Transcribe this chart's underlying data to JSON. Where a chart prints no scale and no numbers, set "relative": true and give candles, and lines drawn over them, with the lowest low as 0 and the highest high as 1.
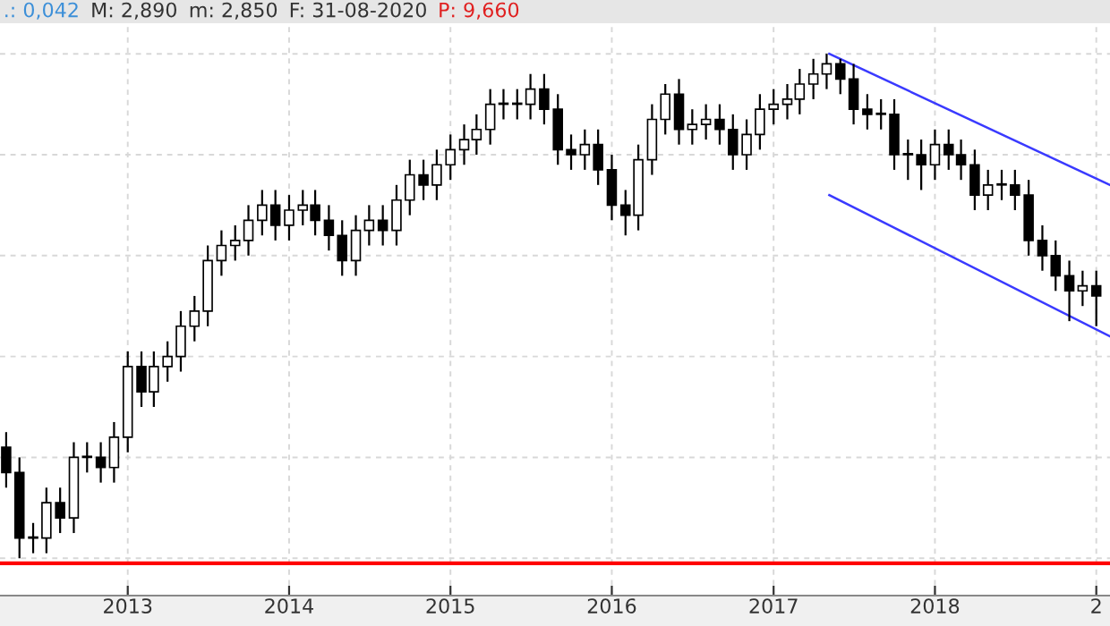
{
  "chart_data": {
    "type": "candlestick",
    "relative": true,
    "color": "#000000",
    "annotations": [
      ".: 0,042",
      "M: 2,890",
      "m: 2,850",
      "F: 31-08-2020",
      "P: 9,660"
    ],
    "x": [
      "2012-04",
      "2012-05",
      "2012-06",
      "2012-07",
      "2012-08",
      "2012-09",
      "2012-10",
      "2012-11",
      "2012-12",
      "2013-01",
      "2013-02",
      "2013-03",
      "2013-04",
      "2013-05",
      "2013-06",
      "2013-07",
      "2013-08",
      "2013-09",
      "2013-10",
      "2013-11",
      "2013-12",
      "2014-01",
      "2014-02",
      "2014-03",
      "2014-04",
      "2014-05",
      "2014-06",
      "2014-07",
      "2014-08",
      "2014-09",
      "2014-10",
      "2014-11",
      "2014-12",
      "2015-01",
      "2015-02",
      "2015-03",
      "2015-04",
      "2015-05",
      "2015-06",
      "2015-07",
      "2015-08",
      "2015-09",
      "2015-10",
      "2015-11",
      "2015-12",
      "2016-01",
      "2016-02",
      "2016-03",
      "2016-04",
      "2016-05",
      "2016-06",
      "2016-07",
      "2016-08",
      "2016-09",
      "2016-10",
      "2016-11",
      "2016-12",
      "2017-01",
      "2017-02",
      "2017-03",
      "2017-04",
      "2017-05",
      "2017-06",
      "2017-07",
      "2017-08",
      "2017-09",
      "2017-10",
      "2017-11",
      "2017-12",
      "2018-01",
      "2018-02",
      "2018-03",
      "2018-04",
      "2018-05",
      "2018-06",
      "2018-07",
      "2018-08",
      "2018-09",
      "2018-10",
      "2018-11",
      "2018-12",
      "2019-01"
    ],
    "ohlc": [
      [
        0.22,
        0.25,
        0.14,
        0.17
      ],
      [
        0.17,
        0.2,
        0,
        0.04
      ],
      [
        0.04,
        0.07,
        0.01,
        0.04
      ],
      [
        0.04,
        0.14,
        0.01,
        0.11
      ],
      [
        0.11,
        0.14,
        0.05,
        0.08
      ],
      [
        0.08,
        0.23,
        0.05,
        0.2
      ],
      [
        0.2,
        0.23,
        0.17,
        0.2
      ],
      [
        0.2,
        0.23,
        0.15,
        0.18
      ],
      [
        0.18,
        0.27,
        0.15,
        0.24
      ],
      [
        0.24,
        0.41,
        0.21,
        0.38
      ],
      [
        0.38,
        0.41,
        0.3,
        0.33
      ],
      [
        0.33,
        0.41,
        0.3,
        0.38
      ],
      [
        0.38,
        0.43,
        0.35,
        0.4
      ],
      [
        0.4,
        0.49,
        0.37,
        0.46
      ],
      [
        0.46,
        0.52,
        0.43,
        0.49
      ],
      [
        0.49,
        0.62,
        0.46,
        0.59
      ],
      [
        0.59,
        0.65,
        0.56,
        0.62
      ],
      [
        0.62,
        0.66,
        0.59,
        0.63
      ],
      [
        0.63,
        0.7,
        0.6,
        0.67
      ],
      [
        0.67,
        0.73,
        0.64,
        0.7
      ],
      [
        0.7,
        0.73,
        0.63,
        0.66
      ],
      [
        0.66,
        0.72,
        0.63,
        0.69
      ],
      [
        0.69,
        0.73,
        0.66,
        0.7
      ],
      [
        0.7,
        0.73,
        0.64,
        0.67
      ],
      [
        0.67,
        0.7,
        0.61,
        0.64
      ],
      [
        0.64,
        0.67,
        0.56,
        0.59
      ],
      [
        0.59,
        0.68,
        0.56,
        0.65
      ],
      [
        0.65,
        0.7,
        0.62,
        0.67
      ],
      [
        0.67,
        0.7,
        0.62,
        0.65
      ],
      [
        0.65,
        0.74,
        0.62,
        0.71
      ],
      [
        0.71,
        0.79,
        0.68,
        0.76
      ],
      [
        0.76,
        0.79,
        0.71,
        0.74
      ],
      [
        0.74,
        0.81,
        0.71,
        0.78
      ],
      [
        0.78,
        0.84,
        0.75,
        0.81
      ],
      [
        0.81,
        0.86,
        0.78,
        0.83
      ],
      [
        0.83,
        0.88,
        0.8,
        0.85
      ],
      [
        0.85,
        0.93,
        0.82,
        0.9
      ],
      [
        0.9,
        0.93,
        0.87,
        0.9
      ],
      [
        0.9,
        0.93,
        0.87,
        0.9
      ],
      [
        0.9,
        0.96,
        0.87,
        0.93
      ],
      [
        0.93,
        0.96,
        0.86,
        0.89
      ],
      [
        0.89,
        0.92,
        0.78,
        0.81
      ],
      [
        0.81,
        0.84,
        0.77,
        0.8
      ],
      [
        0.8,
        0.85,
        0.77,
        0.82
      ],
      [
        0.82,
        0.85,
        0.74,
        0.77
      ],
      [
        0.77,
        0.8,
        0.67,
        0.7
      ],
      [
        0.7,
        0.73,
        0.64,
        0.68
      ],
      [
        0.68,
        0.82,
        0.65,
        0.79
      ],
      [
        0.79,
        0.9,
        0.76,
        0.87
      ],
      [
        0.87,
        0.94,
        0.84,
        0.92
      ],
      [
        0.92,
        0.95,
        0.82,
        0.85
      ],
      [
        0.85,
        0.89,
        0.82,
        0.86
      ],
      [
        0.86,
        0.9,
        0.83,
        0.87
      ],
      [
        0.87,
        0.9,
        0.82,
        0.85
      ],
      [
        0.85,
        0.88,
        0.77,
        0.8
      ],
      [
        0.8,
        0.87,
        0.77,
        0.84
      ],
      [
        0.84,
        0.92,
        0.81,
        0.89
      ],
      [
        0.89,
        0.93,
        0.86,
        0.9
      ],
      [
        0.9,
        0.94,
        0.87,
        0.91
      ],
      [
        0.91,
        0.97,
        0.88,
        0.94
      ],
      [
        0.94,
        0.99,
        0.91,
        0.96
      ],
      [
        0.96,
        1,
        0.93,
        0.98
      ],
      [
        0.98,
        0.99,
        0.92,
        0.95
      ],
      [
        0.95,
        0.98,
        0.86,
        0.89
      ],
      [
        0.89,
        0.92,
        0.85,
        0.88
      ],
      [
        0.88,
        0.91,
        0.85,
        0.88
      ],
      [
        0.88,
        0.91,
        0.77,
        0.8
      ],
      [
        0.8,
        0.83,
        0.75,
        0.8
      ],
      [
        0.8,
        0.83,
        0.73,
        0.78
      ],
      [
        0.78,
        0.85,
        0.75,
        0.82
      ],
      [
        0.82,
        0.85,
        0.77,
        0.8
      ],
      [
        0.8,
        0.83,
        0.75,
        0.78
      ],
      [
        0.78,
        0.81,
        0.69,
        0.72
      ],
      [
        0.72,
        0.77,
        0.69,
        0.74
      ],
      [
        0.74,
        0.77,
        0.71,
        0.74
      ],
      [
        0.74,
        0.77,
        0.69,
        0.72
      ],
      [
        0.72,
        0.75,
        0.6,
        0.63
      ],
      [
        0.63,
        0.66,
        0.57,
        0.6
      ],
      [
        0.6,
        0.63,
        0.53,
        0.56
      ],
      [
        0.56,
        0.59,
        0.47,
        0.53
      ],
      [
        0.53,
        0.57,
        0.5,
        0.54
      ],
      [
        0.54,
        0.57,
        0.46,
        0.52
      ]
    ],
    "series": [
      {
        "type": "line",
        "color": "#3a3aff",
        "x": [
          "2017-05-07",
          "2019-02-01"
        ],
        "values": [
          1,
          0.74
        ]
      },
      {
        "type": "line",
        "color": "#3a3aff",
        "x": [
          "2017-05-07",
          "2019-02-01"
        ],
        "values": [
          0.72,
          0.44
        ]
      }
    ],
    "ref_lines": [
      {
        "axis": "y",
        "value": -0.01,
        "color": "#ff0000"
      }
    ],
    "xlim": [
      "2012-03-18",
      "2019-02-01"
    ],
    "xticks": [
      {
        "value": "2013-01-01",
        "label": "2013"
      },
      {
        "value": "2014-01-01",
        "label": "2014"
      },
      {
        "value": "2015-01-01",
        "label": "2015"
      },
      {
        "value": "2016-01-01",
        "label": "2016"
      },
      {
        "value": "2017-01-01",
        "label": "2017"
      },
      {
        "value": "2018-01-01",
        "label": "2018"
      },
      {
        "value": "2019-01-01",
        "label": "2"
      }
    ],
    "grid": true,
    "tick_labels": "x"
  }
}
